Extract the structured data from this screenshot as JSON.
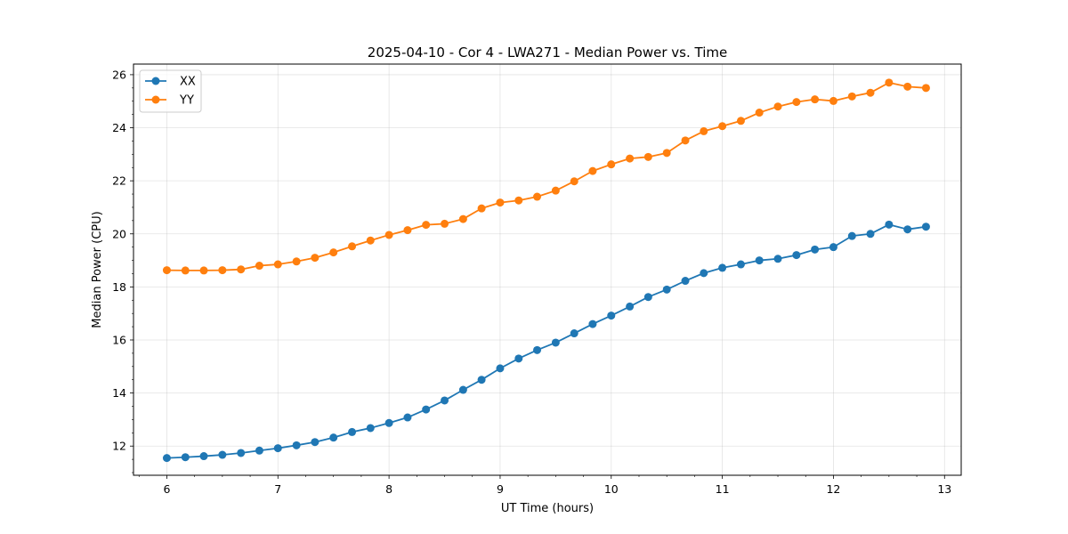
{
  "chart_data": {
    "type": "line",
    "title": "2025-04-10 - Cor 4 - LWA271 - Median Power vs. Time",
    "xlabel": "UT Time (hours)",
    "ylabel": "Median Power (CPU)",
    "xlim": [
      5.7,
      13.15
    ],
    "ylim": [
      10.9,
      26.4
    ],
    "xticks": [
      6,
      7,
      8,
      9,
      10,
      11,
      12,
      13
    ],
    "yticks": [
      12,
      14,
      16,
      18,
      20,
      22,
      24,
      26
    ],
    "grid": true,
    "legend_position": "top-left",
    "x": [
      6.0,
      6.167,
      6.333,
      6.5,
      6.667,
      6.833,
      7.0,
      7.167,
      7.333,
      7.5,
      7.667,
      7.833,
      8.0,
      8.167,
      8.333,
      8.5,
      8.667,
      8.833,
      9.0,
      9.167,
      9.333,
      9.5,
      9.667,
      9.833,
      10.0,
      10.167,
      10.333,
      10.5,
      10.667,
      10.833,
      11.0,
      11.167,
      11.333,
      11.5,
      11.667,
      11.833,
      12.0,
      12.167,
      12.333,
      12.5,
      12.667,
      12.833
    ],
    "series": [
      {
        "name": "XX",
        "color": "#1f77b4",
        "values": [
          11.55,
          11.58,
          11.62,
          11.67,
          11.74,
          11.83,
          11.92,
          12.03,
          12.15,
          12.32,
          12.53,
          12.68,
          12.87,
          13.08,
          13.38,
          13.72,
          14.12,
          14.5,
          14.93,
          15.3,
          15.62,
          15.9,
          16.25,
          16.6,
          16.92,
          17.26,
          17.62,
          17.9,
          18.23,
          18.52,
          18.72,
          18.85,
          19.0,
          19.06,
          19.2,
          19.41,
          19.5,
          19.92,
          20.0,
          20.35,
          20.17,
          20.27
        ]
      },
      {
        "name": "YY",
        "color": "#ff7f0e",
        "values": [
          18.63,
          18.62,
          18.62,
          18.63,
          18.66,
          18.8,
          18.85,
          18.96,
          19.1,
          19.3,
          19.53,
          19.75,
          19.96,
          20.14,
          20.34,
          20.38,
          20.56,
          20.96,
          21.18,
          21.26,
          21.4,
          21.63,
          21.98,
          22.37,
          22.62,
          22.84,
          22.9,
          23.05,
          23.52,
          23.87,
          24.06,
          24.26,
          24.57,
          24.8,
          24.97,
          25.07,
          25.01,
          25.18,
          25.32,
          25.7,
          25.55,
          25.5
        ]
      }
    ]
  }
}
